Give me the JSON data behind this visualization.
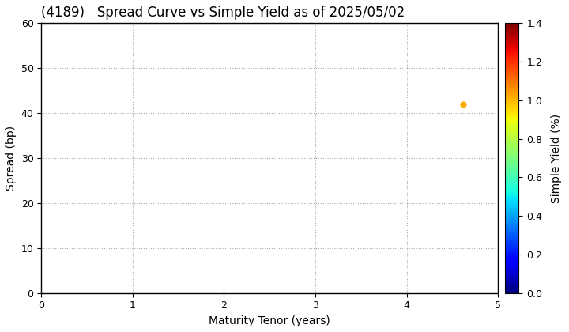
{
  "title": "(4189)   Spread Curve vs Simple Yield as of 2025/05/02",
  "xlabel": "Maturity Tenor (years)",
  "ylabel": "Spread (bp)",
  "colorbar_label": "Simple Yield (%)",
  "xlim": [
    0,
    5
  ],
  "ylim": [
    0,
    60
  ],
  "xticks": [
    0,
    1,
    2,
    3,
    4,
    5
  ],
  "yticks": [
    0,
    10,
    20,
    30,
    40,
    50,
    60
  ],
  "colorbar_ticks": [
    0.0,
    0.2,
    0.4,
    0.6,
    0.8,
    1.0,
    1.2,
    1.4
  ],
  "colorbar_vmin": 0.0,
  "colorbar_vmax": 1.4,
  "scatter_x": [
    4.62
  ],
  "scatter_y": [
    42
  ],
  "scatter_color": [
    1.02
  ],
  "scatter_size": 25,
  "grid_color": "#aaaaaa",
  "background_color": "#ffffff",
  "title_fontsize": 12,
  "axis_fontsize": 10,
  "tick_fontsize": 9
}
